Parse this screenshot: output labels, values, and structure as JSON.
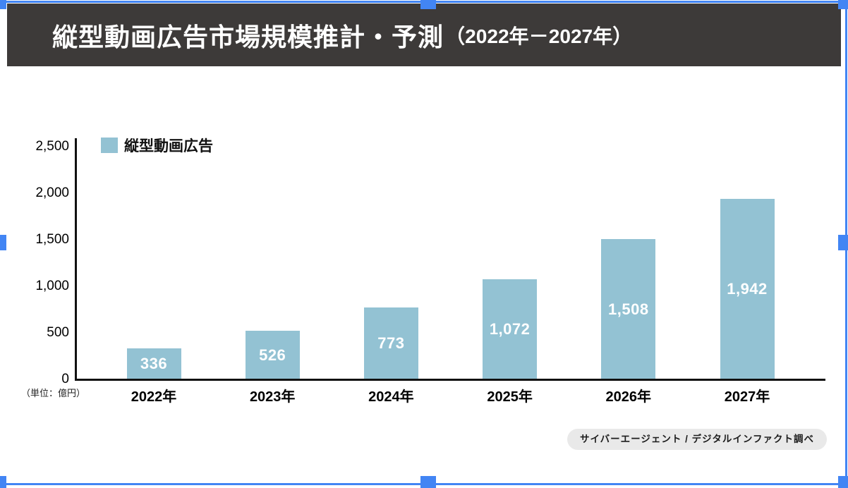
{
  "header": {
    "title_main": "縦型動画広告市場規模推計・予測",
    "title_range": "（2022年－2027年）",
    "bg": "#3d3a39"
  },
  "legend": {
    "label": "縦型動画広告",
    "swatch_color": "#93c2d3"
  },
  "axis": {
    "unit_label": "（単位：億円）"
  },
  "source_badge": {
    "text": "サイバーエージェント / デジタルインファクト調べ"
  },
  "selection": {
    "color": "#4285f4"
  },
  "chart_data": {
    "type": "bar",
    "title": "縦型動画広告市場規模推計・予測（2022年－2027年）",
    "series_name": "縦型動画広告",
    "categories": [
      "2022年",
      "2023年",
      "2024年",
      "2025年",
      "2026年",
      "2027年"
    ],
    "values": [
      336,
      526,
      773,
      1072,
      1508,
      1942
    ],
    "value_labels": [
      "336",
      "526",
      "773",
      "1,072",
      "1,508",
      "1,942"
    ],
    "unit": "億円",
    "ylim": [
      0,
      2500
    ],
    "y_tick_values": [
      0,
      500,
      1000,
      1500,
      2000,
      2500
    ],
    "y_ticks": [
      "0",
      "500",
      "1,000",
      "1,500",
      "2,000",
      "2,500"
    ],
    "bar_color": "#93c2d3",
    "value_label_color": "#ffffff",
    "grid": false,
    "legend_position": "top-left",
    "source": "サイバーエージェント / デジタルインファクト調べ"
  }
}
